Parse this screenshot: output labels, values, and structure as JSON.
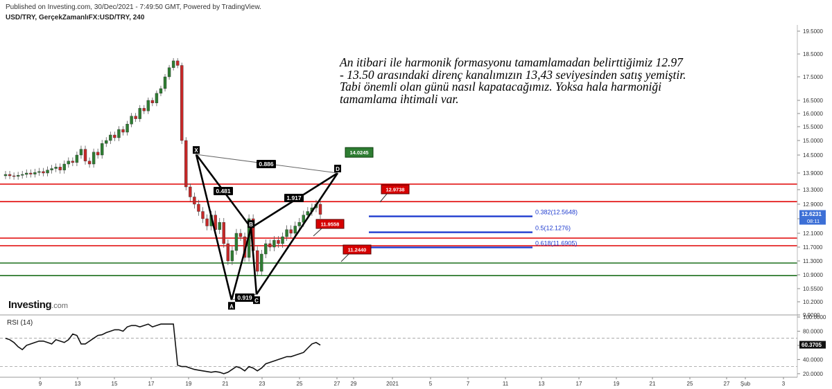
{
  "header": {
    "published": "Published on Investing.com, 30/Dec/2021 - 7:49:50 GMT, Powered by TradingView.",
    "symbol": "USD/TRY, GerçekZamanlıFX:USD/TRY, 240"
  },
  "logo": {
    "brand": "Investing",
    "suffix": ".com"
  },
  "annotation_text": "An itibari ile harmonik formasyonu tamamlamadan belirttiğimiz 12.97 - 13.50 arasındaki direnç kanalımızın 13,43 seviyesinden satış yemiştir. Tabi önemli olan günü nasıl kapatacağımız. Yoksa hala harmoniği tamamlama ihtimali var.",
  "rsi": {
    "title": "RSI (14)",
    "current_label": "60.3705"
  },
  "colors": {
    "up": "#2e7d32",
    "down": "#c62828",
    "resistance": "#e00000",
    "support": "#1b6e1b",
    "fib": "#1f3ccf",
    "pattern": "#000000"
  },
  "chart_data": {
    "type": "candlestick",
    "symbol": "USD/TRY",
    "interval": "240",
    "price_axis": {
      "min": 9.9,
      "max": 19.5,
      "ticks": [
        "19.5000",
        "18.5000",
        "17.5000",
        "16.5000",
        "16.0000",
        "15.5000",
        "15.0000",
        "14.5000",
        "13.9000",
        "13.3000",
        "12.9000",
        "12.5000",
        "12.1000",
        "11.7000",
        "11.3000",
        "10.9000",
        "10.5500",
        "10.2000",
        "9.9000"
      ]
    },
    "time_axis": {
      "ticks": [
        "9",
        "13",
        "15",
        "17",
        "19",
        "21",
        "23",
        "25",
        "27",
        "29",
        "2021",
        "5",
        "7",
        "11",
        "13",
        "17",
        "19",
        "21",
        "25",
        "27",
        "Şub",
        "3"
      ]
    },
    "current_price": "12.6231",
    "countdown": "08:11",
    "candles_close": [
      13.85,
      13.8,
      13.78,
      13.82,
      13.85,
      13.9,
      13.86,
      13.92,
      13.95,
      13.9,
      14.0,
      14.05,
      14.1,
      14.0,
      14.2,
      14.3,
      14.25,
      14.5,
      14.7,
      14.3,
      14.2,
      14.6,
      14.5,
      14.9,
      15.0,
      15.2,
      15.1,
      15.4,
      15.3,
      15.6,
      15.9,
      15.8,
      16.2,
      16.1,
      16.5,
      16.4,
      16.8,
      17.0,
      17.5,
      17.9,
      18.2,
      18.0,
      15.0,
      13.4,
      13.1,
      12.9,
      12.7,
      12.5,
      12.3,
      12.6,
      12.2,
      12.4,
      11.8,
      11.3,
      11.6,
      12.1,
      12.0,
      11.4,
      12.5,
      11.6,
      11.0,
      11.5,
      11.8,
      11.7,
      11.9,
      11.8,
      12.0,
      12.2,
      12.1,
      12.3,
      12.4,
      12.6,
      12.7,
      12.8,
      12.9,
      12.62
    ],
    "harmonic_pattern": {
      "points": [
        {
          "label": "X",
          "price": 14.52
        },
        {
          "label": "A",
          "price": 10.25
        },
        {
          "label": "B",
          "price": 12.25
        },
        {
          "label": "C",
          "price": 10.4
        },
        {
          "label": "D",
          "price": 13.9
        }
      ],
      "ratios": [
        "0.886",
        "0.481",
        "1.917",
        "0.919"
      ],
      "target_tag": "14.0245"
    },
    "horizontal_levels": {
      "resistance": [
        13.5,
        12.97,
        11.96,
        11.74
      ],
      "support": [
        11.24,
        10.88
      ]
    },
    "price_tags": [
      "12.9738",
      "11.9558",
      "11.2440"
    ],
    "fibonacci": [
      {
        "label": "0.382(12.5648)",
        "price": 12.5648
      },
      {
        "label": "0.5(12.1276)",
        "price": 12.1276
      },
      {
        "label": "0.618(11.6905)",
        "price": 11.6905
      }
    ],
    "rsi_axis": {
      "ticks": [
        "100.0000",
        "80.0000",
        "60.0000",
        "40.0000",
        "20.0000"
      ],
      "min": 15,
      "max": 100
    },
    "rsi_values": [
      70,
      68,
      64,
      58,
      54,
      60,
      62,
      64,
      66,
      66,
      64,
      62,
      68,
      66,
      64,
      68,
      76,
      74,
      62,
      62,
      66,
      70,
      74,
      75,
      78,
      80,
      82,
      82,
      80,
      86,
      88,
      88,
      86,
      88,
      90,
      86,
      88,
      90,
      90,
      90,
      90,
      32,
      30,
      30,
      28,
      26,
      25,
      24,
      23,
      22,
      23,
      22,
      20,
      22,
      26,
      30,
      28,
      24,
      30,
      28,
      24,
      28,
      34,
      36,
      38,
      40,
      42,
      44,
      44,
      46,
      48,
      50,
      56,
      62,
      64,
      60.37
    ]
  }
}
